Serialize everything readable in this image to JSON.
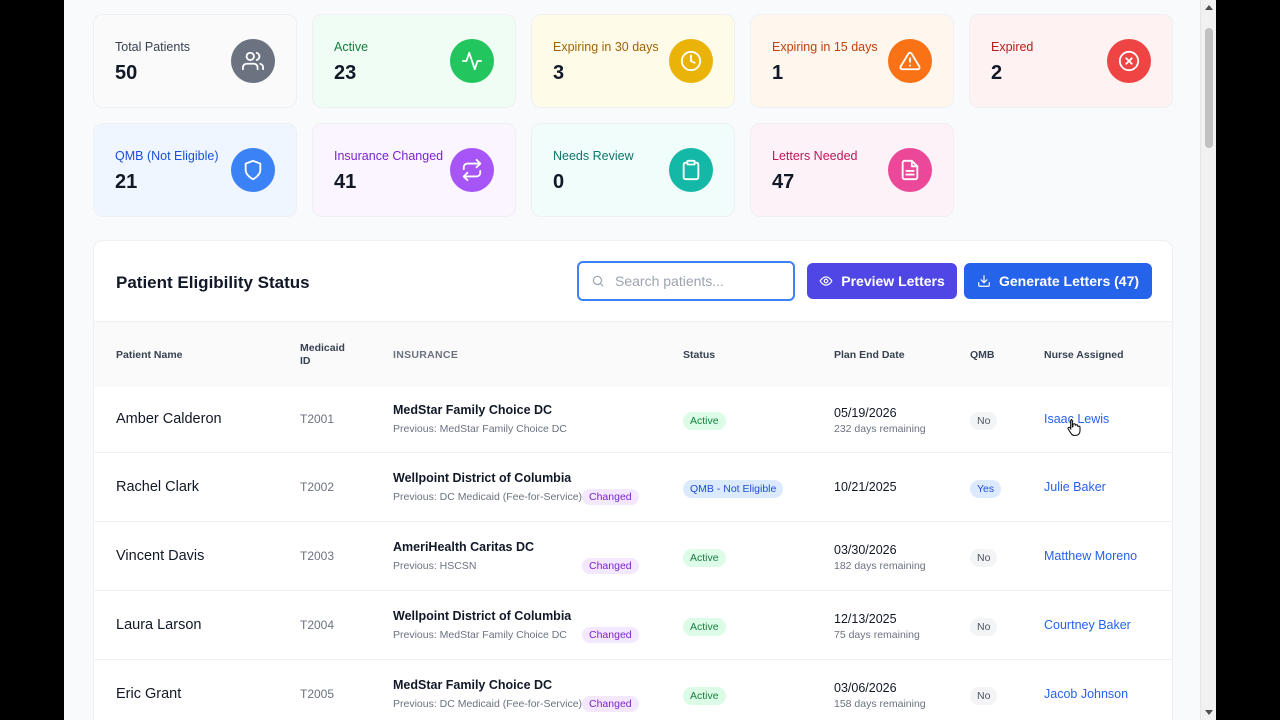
{
  "cards": [
    {
      "label": "Total Patients",
      "value": "50",
      "icon": "users-icon",
      "color": "#6b7280",
      "label_color": "#374151",
      "bg": "#fafafa"
    },
    {
      "label": "Active",
      "value": "23",
      "icon": "activity-icon",
      "color": "#22c55e",
      "label_color": "#15803d",
      "bg": "#f0fdf4"
    },
    {
      "label": "Expiring in 30 days",
      "value": "3",
      "icon": "clock-icon",
      "color": "#eab308",
      "label_color": "#a16207",
      "bg": "#fefce8"
    },
    {
      "label": "Expiring in 15 days",
      "value": "1",
      "icon": "alert-triangle-icon",
      "color": "#f97316",
      "label_color": "#c2410c",
      "bg": "#fff7ed"
    },
    {
      "label": "Expired",
      "value": "2",
      "icon": "x-circle-icon",
      "color": "#ef4444",
      "label_color": "#b91c1c",
      "bg": "#fef2f2"
    },
    {
      "label": "QMB (Not Eligible)",
      "value": "21",
      "icon": "shield-icon",
      "color": "#3b82f6",
      "label_color": "#1d4ed8",
      "bg": "#eff6ff"
    },
    {
      "label": "Insurance Changed",
      "value": "41",
      "icon": "swap-icon",
      "color": "#a855f7",
      "label_color": "#7e22ce",
      "bg": "#faf5ff"
    },
    {
      "label": "Needs Review",
      "value": "0",
      "icon": "clipboard-icon",
      "color": "#14b8a6",
      "label_color": "#0f766e",
      "bg": "#f0fdfa"
    },
    {
      "label": "Letters Needed",
      "value": "47",
      "icon": "file-text-icon",
      "color": "#ec4899",
      "label_color": "#be185d",
      "bg": "#fdf2f8"
    }
  ],
  "panel": {
    "title": "Patient Eligibility Status",
    "search_placeholder": "Search patients...",
    "preview_label": "Preview Letters",
    "generate_label": "Generate Letters (47)"
  },
  "columns": {
    "name": "Patient Name",
    "medicaid_1": "Medicaid",
    "medicaid_2": "ID",
    "insurance": "INSURANCE",
    "status": "Status",
    "plan_end": "Plan End Date",
    "qmb": "QMB",
    "nurse": "Nurse Assigned"
  },
  "rows": [
    {
      "name": "Amber Calderon",
      "id": "T2001",
      "insurance": "MedStar Family Choice DC",
      "previous": "Previous: MedStar Family Choice DC",
      "changed": "",
      "status": "Active",
      "date": "05/19/2026",
      "remaining": "232 days remaining",
      "qmb": "No",
      "nurse": "Isaac Lewis"
    },
    {
      "name": "Rachel Clark",
      "id": "T2002",
      "insurance": "Wellpoint District of Columbia",
      "previous": "Previous: DC Medicaid (Fee-for-Service)",
      "changed": "Changed",
      "status": "QMB - Not Eligible",
      "date": "10/21/2025",
      "remaining": "",
      "qmb": "Yes",
      "nurse": "Julie Baker"
    },
    {
      "name": "Vincent Davis",
      "id": "T2003",
      "insurance": "AmeriHealth Caritas DC",
      "previous": "Previous: HSCSN",
      "changed": "Changed",
      "status": "Active",
      "date": "03/30/2026",
      "remaining": "182 days remaining",
      "qmb": "No",
      "nurse": "Matthew Moreno"
    },
    {
      "name": "Laura Larson",
      "id": "T2004",
      "insurance": "Wellpoint District of Columbia",
      "previous": "Previous: MedStar Family Choice DC",
      "changed": "Changed",
      "status": "Active",
      "date": "12/13/2025",
      "remaining": "75 days remaining",
      "qmb": "No",
      "nurse": "Courtney Baker"
    },
    {
      "name": "Eric Grant",
      "id": "T2005",
      "insurance": "MedStar Family Choice DC",
      "previous": "Previous: DC Medicaid (Fee-for-Service)",
      "changed": "Changed",
      "status": "Active",
      "date": "03/06/2026",
      "remaining": "158 days remaining",
      "qmb": "No",
      "nurse": "Jacob Johnson"
    }
  ]
}
